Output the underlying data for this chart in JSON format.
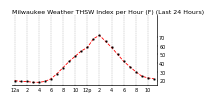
{
  "title": "Milwaukee Weather THSW Index per Hour (F) (Last 24 Hours)",
  "hours": [
    0,
    1,
    2,
    3,
    4,
    5,
    6,
    7,
    8,
    9,
    10,
    11,
    12,
    13,
    14,
    15,
    16,
    17,
    18,
    19,
    20,
    21,
    22,
    23
  ],
  "values": [
    20,
    19,
    19,
    18,
    18,
    19,
    22,
    28,
    35,
    42,
    48,
    54,
    58,
    68,
    72,
    65,
    58,
    50,
    42,
    36,
    30,
    25,
    23,
    22
  ],
  "line_color": "#ff0000",
  "marker_color": "#000000",
  "bg_color": "#ffffff",
  "grid_color": "#888888",
  "ylim": [
    15,
    95
  ],
  "ytick_vals": [
    20,
    30,
    40,
    50,
    60,
    70
  ],
  "ytick_labels": [
    "20",
    "30",
    "40",
    "50",
    "60",
    "70"
  ],
  "xtick_positions": [
    0,
    2,
    4,
    6,
    8,
    10,
    12,
    14,
    16,
    18,
    20,
    22
  ],
  "xtick_labels": [
    "12a",
    "2",
    "4",
    "6",
    "8",
    "10",
    "12p",
    "2",
    "4",
    "6",
    "8",
    "10"
  ],
  "title_fontsize": 4.5,
  "tick_fontsize": 3.5,
  "xlabel_fontsize": 3.5
}
